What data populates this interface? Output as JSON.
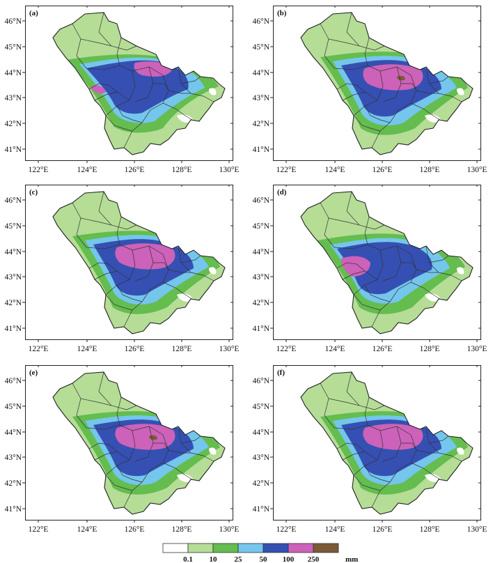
{
  "panels": [
    {
      "label": "(a)",
      "heavy": "left",
      "peak": "east"
    },
    {
      "label": "(b)",
      "heavy": "center",
      "peak": "east"
    },
    {
      "label": "(c)",
      "heavy": "center",
      "peak": "none"
    },
    {
      "label": "(d)",
      "heavy": "west",
      "peak": "none"
    },
    {
      "label": "(e)",
      "heavy": "center",
      "peak": "east"
    },
    {
      "label": "(f)",
      "heavy": "center",
      "peak": "none"
    }
  ],
  "lat_ticks": [
    "46°N",
    "45°N",
    "44°N",
    "43°N",
    "42°N",
    "41°N"
  ],
  "lon_ticks": [
    "122°E",
    "124°E",
    "126°E",
    "128°E",
    "130°E"
  ],
  "legend": {
    "breaks": [
      "0.1",
      "10",
      "25",
      "50",
      "100",
      "250"
    ],
    "unit": "mm",
    "colors": [
      "#ffffff",
      "#b5dd96",
      "#64bd4e",
      "#74c6ec",
      "#3550b2",
      "#cc62b9",
      "#7a5a37"
    ]
  }
}
